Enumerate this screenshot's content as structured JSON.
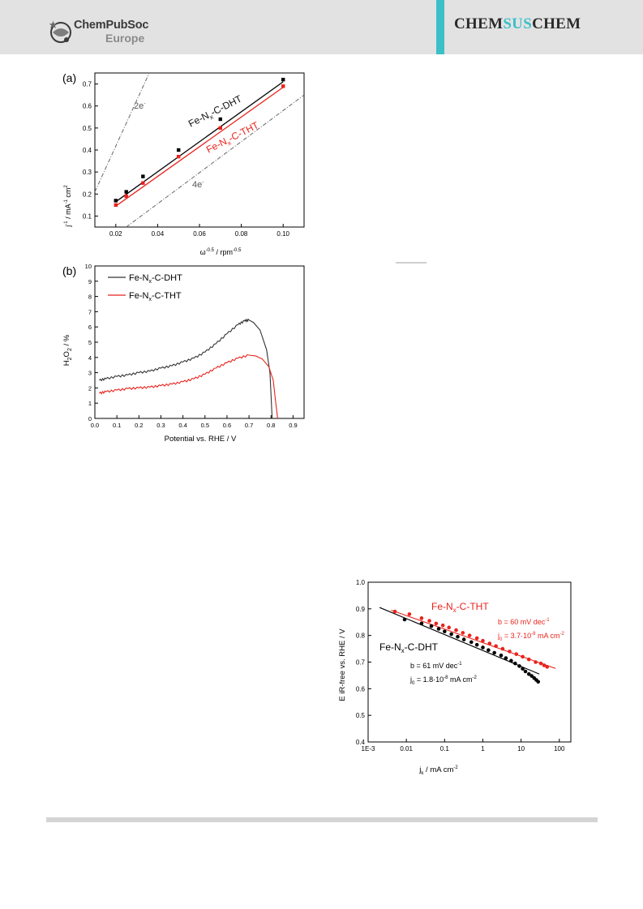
{
  "header": {
    "publisher": "ChemPubSoc",
    "publisher_region": "Europe",
    "journal_prefix": "CHEM",
    "journal_highlight": "SUS",
    "journal_suffix": "CHEM",
    "colors": {
      "band": "#e2e2e2",
      "accent": "#3cc0c8"
    }
  },
  "figures": {
    "a": {
      "panel_label": "(a)",
      "xlabel": "ω^-0.5 / rpm^-0.5",
      "ylabel": "j^-1 / mA^-1 cm^2",
      "line_labels": {
        "two_e": "2e",
        "four_e": "4e"
      },
      "series_labels": [
        "Fe-Nx-C-DHT",
        "Fe-Nx-C-THT"
      ]
    },
    "b": {
      "panel_label": "(b)",
      "xlabel": "Potential vs. RHE / V",
      "ylabel": "H2O2 / %",
      "legend": [
        "Fe-Nx-C-DHT",
        "Fe-Nx-C-THT"
      ]
    },
    "c": {
      "xlabel": "jk / mA cm^-2",
      "ylabel": "E iR-free vs. RHE / V",
      "annotations": {
        "tht_name": "Fe-Nx-C-THT",
        "tht_b": "b = 60 mV dec-1",
        "tht_j0": "j0 = 3.7·10-8 mA cm-2",
        "dht_name": "Fe-Nx-C-DHT",
        "dht_b": "b = 61 mV dec-1",
        "dht_j0": "j0 = 1.8·10-8 mA cm-2"
      }
    }
  },
  "chart_data": [
    {
      "type": "scatter",
      "panel": "a",
      "xlim": [
        0.01,
        0.11
      ],
      "ylim": [
        0.05,
        0.75
      ],
      "xticks": [
        0.02,
        0.04,
        0.06,
        0.08,
        0.1
      ],
      "yticks": [
        0.1,
        0.2,
        0.3,
        0.4,
        0.5,
        0.6,
        0.7
      ],
      "xtick_labels": [
        "0.02",
        "0.04",
        "0.06",
        "0.08",
        "0.10"
      ],
      "ytick_labels": [
        "0.1",
        "0.2",
        "0.3",
        "0.4",
        "0.5",
        "0.6",
        "0.7"
      ],
      "series": [
        {
          "name": "Fe-Nx-C-DHT",
          "color": "#000000",
          "x": [
            0.02,
            0.025,
            0.033,
            0.05,
            0.07,
            0.1
          ],
          "y": [
            0.17,
            0.21,
            0.28,
            0.4,
            0.54,
            0.72
          ],
          "fit": [
            [
              0.02,
              0.165
            ],
            [
              0.1,
              0.71
            ]
          ]
        },
        {
          "name": "Fe-Nx-C-THT",
          "color": "#e8231c",
          "x": [
            0.02,
            0.025,
            0.033,
            0.05,
            0.07,
            0.1
          ],
          "y": [
            0.15,
            0.19,
            0.25,
            0.37,
            0.5,
            0.69
          ],
          "fit": [
            [
              0.02,
              0.145
            ],
            [
              0.1,
              0.685
            ]
          ]
        }
      ],
      "reference_lines": [
        {
          "label": "2e",
          "from": [
            0.01,
            0.21
          ],
          "to": [
            0.036,
            0.75
          ]
        },
        {
          "label": "4e",
          "from": [
            0.025,
            0.05
          ],
          "to": [
            0.11,
            0.65
          ]
        }
      ]
    },
    {
      "type": "line",
      "panel": "b",
      "xlim": [
        0.0,
        0.95
      ],
      "ylim": [
        0,
        10
      ],
      "xticks": [
        0.0,
        0.1,
        0.2,
        0.3,
        0.4,
        0.5,
        0.6,
        0.7,
        0.8,
        0.9
      ],
      "yticks": [
        0,
        1,
        2,
        3,
        4,
        5,
        6,
        7,
        8,
        9,
        10
      ],
      "xtick_labels": [
        "0.0",
        "0.1",
        "0.2",
        "0.3",
        "0.4",
        "0.5",
        "0.6",
        "0.7",
        "0.8",
        "0.9"
      ],
      "ytick_labels": [
        "0",
        "1",
        "2",
        "3",
        "4",
        "5",
        "6",
        "7",
        "8",
        "9",
        "10"
      ],
      "series": [
        {
          "name": "Fe-Nx-C-DHT",
          "color": "#333333",
          "x": [
            0.02,
            0.05,
            0.1,
            0.15,
            0.2,
            0.25,
            0.3,
            0.35,
            0.4,
            0.45,
            0.5,
            0.55,
            0.6,
            0.65,
            0.68,
            0.7,
            0.72,
            0.75,
            0.78,
            0.795,
            0.8,
            0.805
          ],
          "y": [
            2.5,
            2.6,
            2.75,
            2.85,
            3.0,
            3.1,
            3.3,
            3.45,
            3.7,
            3.95,
            4.35,
            4.9,
            5.55,
            6.15,
            6.4,
            6.45,
            6.3,
            5.8,
            4.5,
            3.0,
            1.5,
            0.0
          ]
        },
        {
          "name": "Fe-Nx-C-THT",
          "color": "#e8231c",
          "x": [
            0.02,
            0.05,
            0.1,
            0.15,
            0.2,
            0.25,
            0.3,
            0.35,
            0.4,
            0.45,
            0.5,
            0.55,
            0.6,
            0.65,
            0.7,
            0.73,
            0.76,
            0.79,
            0.81,
            0.82,
            0.83
          ],
          "y": [
            1.65,
            1.75,
            1.85,
            1.95,
            2.0,
            2.05,
            2.15,
            2.25,
            2.4,
            2.6,
            2.9,
            3.3,
            3.65,
            3.95,
            4.15,
            4.1,
            3.9,
            3.4,
            2.5,
            1.2,
            0.0
          ]
        }
      ]
    },
    {
      "type": "scatter",
      "panel": "c",
      "xscale": "log",
      "xlim": [
        0.001,
        200
      ],
      "ylim": [
        0.4,
        1.0
      ],
      "xticks": [
        0.001,
        0.01,
        0.1,
        1,
        10,
        100
      ],
      "yticks": [
        0.4,
        0.5,
        0.6,
        0.7,
        0.8,
        0.9,
        1.0
      ],
      "xtick_labels": [
        "1E-3",
        "0.01",
        "0.1",
        "1",
        "10",
        "100"
      ],
      "ytick_labels": [
        "0.4",
        "0.5",
        "0.6",
        "0.7",
        "0.8",
        "0.9",
        "1.0"
      ],
      "series": [
        {
          "name": "Fe-Nx-C-THT",
          "color": "#e8231c",
          "x": [
            0.005,
            0.012,
            0.025,
            0.04,
            0.06,
            0.09,
            0.13,
            0.2,
            0.3,
            0.45,
            0.7,
            1.0,
            1.5,
            2.2,
            3.3,
            5.0,
            7.5,
            11,
            16,
            24,
            33,
            40,
            48
          ],
          "y": [
            0.89,
            0.88,
            0.865,
            0.855,
            0.845,
            0.838,
            0.83,
            0.82,
            0.81,
            0.8,
            0.79,
            0.78,
            0.77,
            0.76,
            0.75,
            0.74,
            0.73,
            0.72,
            0.71,
            0.7,
            0.695,
            0.688,
            0.682
          ],
          "fit": [
            [
              0.004,
              0.895
            ],
            [
              80,
              0.676
            ]
          ]
        },
        {
          "name": "Fe-Nx-C-DHT",
          "color": "#000000",
          "x": [
            0.009,
            0.025,
            0.045,
            0.07,
            0.1,
            0.15,
            0.22,
            0.32,
            0.5,
            0.7,
            1.0,
            1.4,
            2.0,
            3.0,
            4.0,
            5.5,
            7.0,
            9.0,
            11,
            13,
            16,
            19,
            22,
            25,
            28
          ],
          "y": [
            0.86,
            0.845,
            0.835,
            0.825,
            0.815,
            0.805,
            0.795,
            0.785,
            0.775,
            0.765,
            0.755,
            0.745,
            0.735,
            0.725,
            0.715,
            0.705,
            0.695,
            0.685,
            0.675,
            0.665,
            0.655,
            0.648,
            0.64,
            0.633,
            0.626
          ],
          "fit": [
            [
              0.002,
              0.905
            ],
            [
              30,
              0.655
            ]
          ]
        }
      ]
    }
  ]
}
